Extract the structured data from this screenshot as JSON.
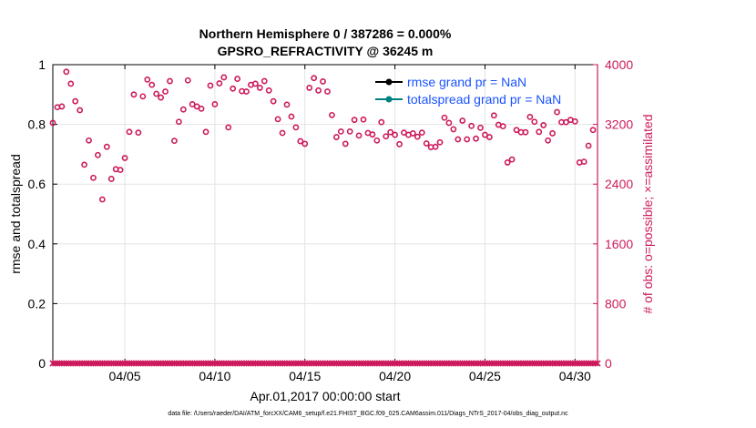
{
  "chart_data": {
    "type": "scatter",
    "title_lines": [
      "Northern Hemisphere 0 / 387286 = 0.000%",
      "GPSRO_REFRACTIVITY @ 36245 m"
    ],
    "xlabel": "Apr.01,2017 00:00:00 start",
    "ylabel_left": "rmse and totalspread",
    "ylabel_right": "# of obs: o=possible; ×=assimilated",
    "x_unit": "days since Apr.01,2017 00:00:00",
    "xlim": [
      0,
      30.25
    ],
    "x_ticks": [
      {
        "x": 4,
        "label": "04/05"
      },
      {
        "x": 9,
        "label": "04/10"
      },
      {
        "x": 14,
        "label": "04/15"
      },
      {
        "x": 19,
        "label": "04/20"
      },
      {
        "x": 24,
        "label": "04/25"
      },
      {
        "x": 29,
        "label": "04/30"
      }
    ],
    "y_left": {
      "lim": [
        0,
        1
      ],
      "ticks": [
        0,
        0.2,
        0.4,
        0.6,
        0.8,
        1
      ],
      "tick_labels": [
        "0",
        "0.2",
        "0.4",
        "0.6",
        "0.8",
        "1"
      ]
    },
    "y_right": {
      "lim": [
        0,
        4000
      ],
      "ticks": [
        0,
        800,
        1600,
        2400,
        3200,
        4000
      ],
      "tick_labels": [
        "0",
        "800",
        "1600",
        "2400",
        "3200",
        "4000"
      ]
    },
    "grid": true,
    "legend_position": "top-right",
    "legend": [
      {
        "label": "rmse grand pr = NaN",
        "color": "#000000",
        "marker": "filled-circle"
      },
      {
        "label": "totalspread grand pr = NaN",
        "color": "#008080",
        "marker": "filled-circle"
      }
    ],
    "series": [
      {
        "name": "rmse",
        "values": [],
        "axis": "left"
      },
      {
        "name": "totalspread",
        "values": [],
        "axis": "left"
      },
      {
        "name": "possible",
        "axis": "right",
        "marker": "open-circle",
        "color": "#cc1a5c",
        "x": [
          0.0,
          0.25,
          0.5,
          0.75,
          1.0,
          1.25,
          1.5,
          1.75,
          2.0,
          2.25,
          2.5,
          2.75,
          3.0,
          3.25,
          3.5,
          3.75,
          4.0,
          4.25,
          4.5,
          4.75,
          5.0,
          5.25,
          5.5,
          5.75,
          6.0,
          6.25,
          6.5,
          6.75,
          7.0,
          7.25,
          7.5,
          7.75,
          8.0,
          8.25,
          8.5,
          8.75,
          9.0,
          9.25,
          9.5,
          9.75,
          10.0,
          10.25,
          10.5,
          10.75,
          11.0,
          11.25,
          11.5,
          11.75,
          12.0,
          12.25,
          12.5,
          12.75,
          13.0,
          13.25,
          13.5,
          13.75,
          14.0,
          14.25,
          14.5,
          14.75,
          15.0,
          15.25,
          15.5,
          15.75,
          16.0,
          16.25,
          16.5,
          16.75,
          17.0,
          17.25,
          17.5,
          17.75,
          18.0,
          18.25,
          18.5,
          18.75,
          19.0,
          19.25,
          19.5,
          19.75,
          20.0,
          20.25,
          20.5,
          20.75,
          21.0,
          21.25,
          21.5,
          21.75,
          22.0,
          22.25,
          22.5,
          22.75,
          23.0,
          23.25,
          23.5,
          23.75,
          24.0,
          24.25,
          24.5,
          24.75,
          25.0,
          25.25,
          25.5,
          25.75,
          26.0,
          26.25,
          26.5,
          26.75,
          27.0,
          27.25,
          27.5,
          27.75,
          28.0,
          28.25,
          28.5,
          28.75,
          29.0,
          29.25,
          29.5,
          29.75,
          30.0
        ],
        "values": [
          3220,
          3430,
          3440,
          3905,
          3745,
          3510,
          3390,
          2660,
          2985,
          2485,
          2790,
          2195,
          2900,
          2470,
          2600,
          2590,
          2750,
          3100,
          3600,
          3090,
          3575,
          3800,
          3730,
          3610,
          3560,
          3640,
          3780,
          2980,
          3235,
          3400,
          3790,
          3470,
          3440,
          3410,
          3100,
          3720,
          3470,
          3750,
          3830,
          3160,
          3680,
          3810,
          3645,
          3640,
          3730,
          3745,
          3690,
          3780,
          3655,
          3510,
          3270,
          3085,
          3465,
          3305,
          3160,
          2975,
          2940,
          3690,
          3820,
          3655,
          3775,
          3640,
          3325,
          3030,
          3105,
          2940,
          3105,
          3260,
          3050,
          3265,
          3085,
          3065,
          2985,
          3230,
          3040,
          3095,
          3060,
          2935,
          3090,
          3060,
          3080,
          3035,
          3090,
          2945,
          2895,
          2900,
          2960,
          3290,
          3220,
          3135,
          3000,
          3250,
          3000,
          3180,
          3010,
          3155,
          3060,
          3030,
          3320,
          3195,
          3175,
          2690,
          2730,
          3125,
          3095,
          3095,
          3300,
          3235,
          3100,
          3190,
          2985,
          3080,
          3365,
          3230,
          3230,
          3260,
          3240,
          2690,
          2700,
          2915,
          3125
        ]
      },
      {
        "name": "assimilated",
        "axis": "right",
        "marker": "cross",
        "color": "#cc1a5c",
        "x_range": [
          0,
          30.25
        ],
        "x_step": 0.125,
        "value": 0
      }
    ]
  },
  "footnote": "data file: /Users/raeder/DAI/ATM_forcXX/CAM6_setup/f.e21.FHIST_BGC.f09_025.CAM6assim.011/Diags_NTrS_2017-04/obs_diag_output.nc",
  "colors": {
    "obs": "#cc1a5c",
    "axis": "#000000",
    "grid": "#e3e3e3",
    "legend_text": "#1a53ff",
    "rmse": "#000000",
    "spread": "#008080"
  }
}
